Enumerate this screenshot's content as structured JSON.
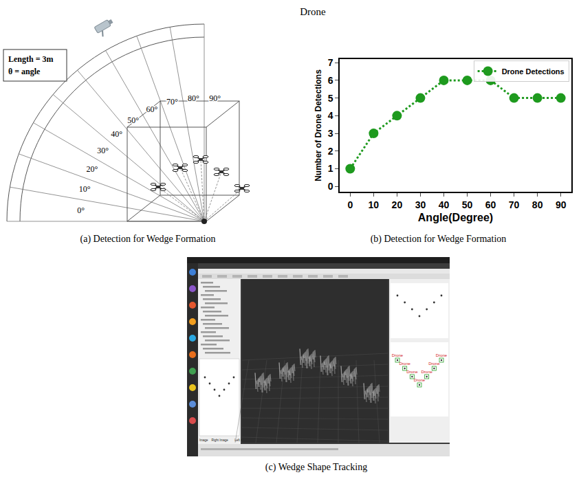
{
  "diagram": {
    "note": [
      "Length = 3m",
      "θ = angle"
    ],
    "angles": [
      {
        "value": 0,
        "label": "0°"
      },
      {
        "value": 10,
        "label": "10°"
      },
      {
        "value": 20,
        "label": "20°"
      },
      {
        "value": 30,
        "label": "30°"
      },
      {
        "value": 40,
        "label": "40°"
      },
      {
        "value": 50,
        "label": "50°"
      },
      {
        "value": 60,
        "label": "60°"
      },
      {
        "value": 70,
        "label": "70°"
      },
      {
        "value": 80,
        "label": "80°"
      },
      {
        "value": 90,
        "label": "90°"
      }
    ]
  },
  "chart_data": {
    "type": "line",
    "title": "Drone",
    "x": [
      0,
      10,
      20,
      30,
      40,
      50,
      60,
      70,
      80,
      90
    ],
    "series": [
      {
        "name": "Drone Detections",
        "color": "#1e9a1e",
        "marker": "circle",
        "line_style": "dotted",
        "values": [
          1,
          3,
          4,
          5,
          6,
          6,
          6,
          5,
          5,
          5
        ]
      }
    ],
    "xlabel": "Angle(Degree)",
    "ylabel": "Number of Drone Detections",
    "xlim": [
      -4.5,
      94.5
    ],
    "ylim": [
      -0.3,
      7.2
    ],
    "xticks": [
      0,
      10,
      20,
      30,
      40,
      50,
      60,
      70,
      80,
      90
    ],
    "yticks": [
      0,
      1,
      2,
      3,
      4,
      5,
      6,
      7
    ],
    "legend": "upper right",
    "grid": false
  },
  "screenshot": {
    "tabs": [
      "Image",
      "Right Image",
      "Left Image"
    ],
    "detections": [
      "Drone",
      "Drone",
      "Drone",
      "Drone",
      "Drone",
      "Drone",
      "Drone"
    ]
  },
  "captions": {
    "a": "(a) Detection for Wedge Formation",
    "b": "(b) Detection for Wedge Formation",
    "c": "(c) Wedge Shape Tracking"
  }
}
